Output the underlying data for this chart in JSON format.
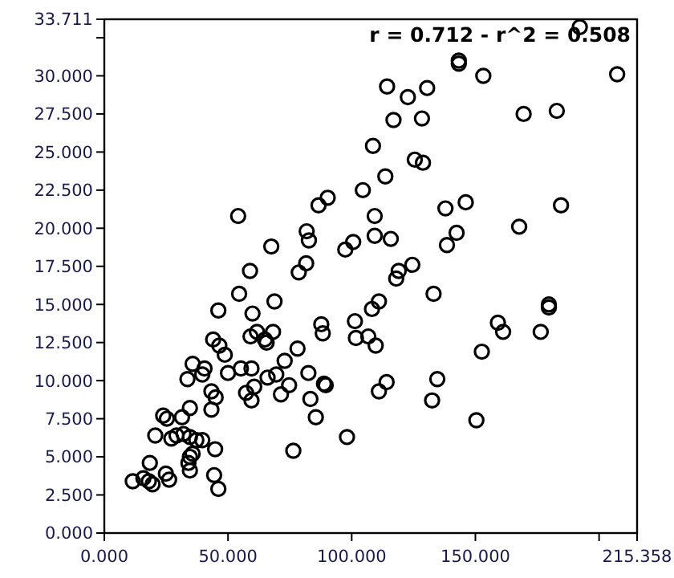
{
  "chart_data": {
    "type": "scatter",
    "marker": "circle",
    "grid": false,
    "annotations": [
      "r = 0.712 - r^2 = 0.508"
    ],
    "xlim": [
      0,
      215.358
    ],
    "ylim": [
      0,
      33.711
    ],
    "xticks": [
      {
        "value": 0,
        "label": "0.000"
      },
      {
        "value": 50,
        "label": "50.000"
      },
      {
        "value": 100,
        "label": "100.000"
      },
      {
        "value": 150,
        "label": "150.000"
      },
      {
        "value": 200,
        "label": null
      },
      215.358
    ],
    "yticks": [
      {
        "value": 0,
        "label": "0.000"
      },
      {
        "value": 2.5,
        "label": "2.500"
      },
      {
        "value": 5,
        "label": "5.000"
      },
      {
        "value": 7.5,
        "label": "7.500"
      },
      {
        "value": 10,
        "label": "10.000"
      },
      {
        "value": 12.5,
        "label": "12.500"
      },
      {
        "value": 15,
        "label": "15.000"
      },
      {
        "value": 17.5,
        "label": "17.500"
      },
      {
        "value": 20,
        "label": "20.000"
      },
      {
        "value": 22.5,
        "label": "22.500"
      },
      {
        "value": 25,
        "label": "25.000"
      },
      {
        "value": 27.5,
        "label": "27.500"
      },
      {
        "value": 30,
        "label": "30.000"
      },
      {
        "value": 32.5,
        "label": null
      },
      33.711
    ],
    "series": [
      {
        "color": "#000000",
        "x": [
          11.5,
          15.8,
          18.0,
          19.5,
          18.4,
          24.9,
          26.2,
          23.8,
          25.3,
          31.4,
          34.6,
          33.6,
          35.7,
          39.6,
          40.5,
          43.3,
          45.0,
          43.3,
          44.0,
          46.5,
          48.7,
          46.1,
          50.0,
          54.5,
          55.2,
          59.5,
          59.9,
          59.1,
          61.7,
          64.9,
          65.6,
          68.2,
          68.8,
          60.6,
          57.3,
          59.5,
          66.0,
          69.5,
          72.9,
          78.1,
          74.7,
          71.4,
          76.4,
          82.5,
          83.3,
          85.5,
          87.7,
          88.3,
          88.8,
          89.5,
          20.6,
          27.1,
          29.2,
          32.0,
          34.6,
          37.2,
          39.6,
          34.6,
          34.0,
          34.6,
          35.7,
          44.8,
          44.4,
          46.1,
          54.1,
          58.9,
          67.5,
          78.6,
          81.6,
          81.8,
          82.7,
          86.6,
          90.3,
          192.2,
          143.3,
          143.3,
          153.2,
          207.3,
          114.3,
          122.7,
          130.5,
          116.9,
          128.4,
          169.5,
          182.9,
          108.6,
          125.5,
          128.8,
          113.6,
          104.5,
          109.3,
          109.3,
          115.8,
          137.9,
          146.1,
          184.6,
          167.7,
          142.4,
          138.5,
          100.6,
          97.4,
          124.5,
          119.0,
          118.0,
          133.1,
          111.0,
          108.2,
          101.3,
          101.7,
          106.7,
          109.7,
          114.1,
          111.0,
          134.6,
          132.5,
          150.4,
          98.1,
          152.6,
          159.1,
          161.2,
          176.4,
          179.7,
          179.7
        ],
        "values": [
          3.4,
          3.6,
          3.4,
          3.2,
          4.6,
          3.9,
          3.5,
          7.7,
          7.5,
          7.6,
          8.2,
          10.1,
          11.1,
          10.4,
          10.8,
          9.3,
          8.9,
          8.1,
          12.7,
          12.3,
          11.7,
          14.6,
          10.5,
          15.7,
          10.8,
          10.8,
          14.4,
          12.9,
          13.2,
          12.7,
          12.5,
          13.2,
          15.2,
          9.6,
          9.2,
          8.7,
          10.2,
          10.4,
          11.3,
          12.1,
          9.7,
          9.1,
          5.4,
          10.5,
          8.8,
          7.6,
          13.7,
          13.1,
          9.8,
          9.7,
          6.4,
          6.2,
          6.4,
          6.5,
          6.3,
          6.1,
          6.1,
          5.0,
          4.6,
          4.1,
          5.2,
          5.5,
          3.8,
          2.9,
          20.8,
          17.2,
          18.8,
          17.1,
          17.7,
          19.8,
          19.2,
          21.5,
          22.0,
          33.2,
          31.0,
          30.8,
          30.0,
          30.1,
          29.3,
          28.6,
          29.2,
          27.1,
          27.2,
          27.5,
          27.7,
          25.4,
          24.5,
          24.3,
          23.4,
          22.5,
          20.8,
          19.5,
          19.3,
          21.3,
          21.7,
          21.5,
          20.1,
          19.7,
          18.9,
          19.1,
          18.6,
          17.6,
          17.2,
          16.7,
          15.7,
          15.2,
          14.7,
          13.9,
          12.8,
          12.9,
          12.3,
          9.9,
          9.3,
          10.1,
          8.7,
          7.4,
          6.3,
          11.9,
          13.8,
          13.2,
          13.2,
          15.0,
          14.8
        ]
      }
    ]
  }
}
